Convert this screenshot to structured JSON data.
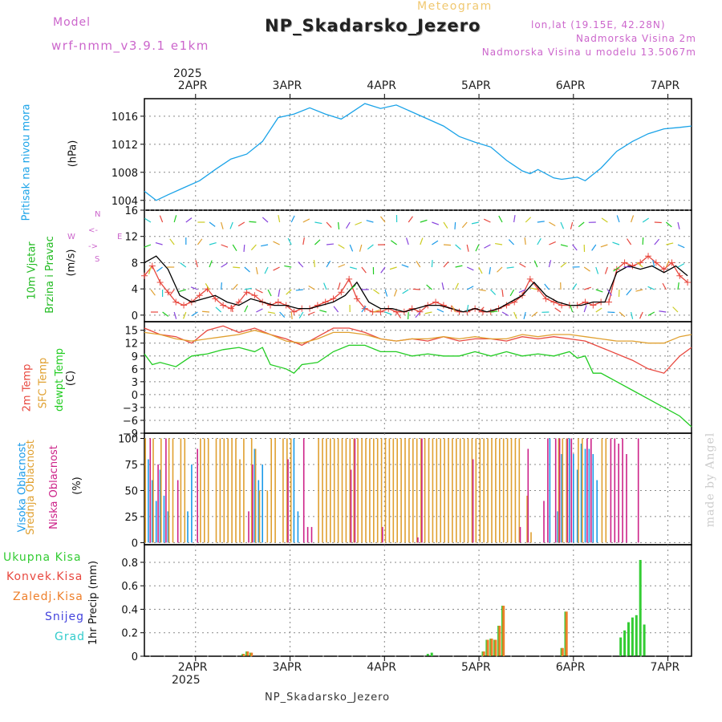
{
  "header": {
    "model_label": "Model",
    "model_name": "wrf-nmm_v3.9.1 e1km",
    "title": "NP_Skadarsko_Jezero",
    "subtitle": "Meteogram",
    "coords": "lon,lat (19.15E, 42.28N)",
    "elev1": "Nadmorska Visina 2m",
    "elev2": "Nadmorska Visina u modelu 13.5067m"
  },
  "footer": {
    "station": "NP_Skadarsko_Jezero",
    "credit": "made by Angel"
  },
  "colors": {
    "pressure": "#1aa3e8",
    "t2m": "#e8483f",
    "sfc": "#e0a030",
    "dew": "#22cc22",
    "high_cloud": "#1a9ae8",
    "mid_cloud": "#e0a030",
    "low_cloud": "#cc2288",
    "total_precip": "#33cc33",
    "conv_precip": "#e8483f",
    "strat_precip": "#ee7f2a",
    "snow": "#4444dd",
    "graupel": "#33cccc",
    "wind_label": "#22bb22",
    "compass": "#cc66cc"
  },
  "chart_data": [
    {
      "id": "pressure",
      "type": "line",
      "ylabel_main": "Pritisak na nivou mora",
      "ylabel_unit": "(hPa)",
      "yticks": [
        1004,
        1008,
        1012,
        1016
      ],
      "ylim": [
        1002.6,
        1018.5
      ],
      "xlim": [
        0,
        139
      ],
      "top_axis": {
        "year": "2025",
        "days": [
          "2APR",
          "3APR",
          "4APR",
          "5APR",
          "6APR",
          "7APR"
        ],
        "day_x": [
          13,
          37,
          61,
          85,
          109,
          133
        ]
      },
      "series": [
        {
          "x": [
            0,
            3,
            6,
            10,
            14,
            18,
            22,
            26,
            30,
            34,
            38,
            42,
            46,
            50,
            52,
            56,
            60,
            64,
            68,
            72,
            76,
            80,
            84,
            88,
            92,
            96,
            98,
            100,
            104,
            106,
            110,
            112,
            116,
            120,
            124,
            128,
            132,
            136,
            139
          ],
          "y": [
            1005.3,
            1004,
            1004.8,
            1005.8,
            1006.8,
            1008.4,
            1009.9,
            1010.6,
            1012.4,
            1015.8,
            1016.3,
            1017.2,
            1016.3,
            1015.6,
            1016.3,
            1017.8,
            1017.1,
            1017.6,
            1016.6,
            1015.6,
            1014.6,
            1013.1,
            1012.3,
            1011.6,
            1009.7,
            1008.2,
            1007.8,
            1008.4,
            1007.2,
            1007,
            1007.3,
            1006.8,
            1008.6,
            1011,
            1012.4,
            1013.5,
            1014.2,
            1014.4,
            1014.6
          ]
        }
      ]
    },
    {
      "id": "wind",
      "type": "line",
      "ylabel_main": "10m Vjetar",
      "ylabel_sub": "Brzina i Pravac",
      "ylabel_unit": "(m/s)",
      "compass": [
        "N",
        "<-",
        "->",
        "E",
        "W",
        "S"
      ],
      "yticks": [
        0,
        4,
        8,
        12,
        16
      ],
      "ylim": [
        -1,
        16
      ],
      "xlim": [
        0,
        139
      ],
      "series": [
        {
          "name": "",
          "color": "#e8483f",
          "marker": "+",
          "x": [
            0,
            2,
            4,
            6,
            8,
            10,
            12,
            14,
            16,
            18,
            20,
            22,
            24,
            26,
            28,
            30,
            32,
            34,
            36,
            38,
            40,
            42,
            44,
            46,
            48,
            50,
            52,
            54,
            56,
            58,
            60,
            62,
            64,
            66,
            68,
            70,
            72,
            74,
            76,
            78,
            80,
            82,
            84,
            86,
            88,
            90,
            92,
            94,
            96,
            98,
            100,
            102,
            104,
            106,
            108,
            110,
            112,
            114,
            116,
            118,
            120,
            122,
            124,
            126,
            128,
            130,
            132,
            134,
            136,
            138
          ],
          "y": [
            6,
            7.5,
            5,
            3.5,
            2,
            1.5,
            2,
            3,
            4,
            2.5,
            1.5,
            1,
            2,
            3.5,
            3,
            2,
            1.5,
            2,
            1.5,
            0.5,
            1,
            1,
            1.5,
            2,
            2.5,
            3.5,
            5.5,
            2.5,
            1,
            0.5,
            0.5,
            1,
            0.5,
            0.5,
            1,
            0.5,
            1.5,
            2,
            1.5,
            1,
            0.5,
            0.5,
            1,
            0.5,
            0.5,
            1,
            1.5,
            2,
            3,
            5.5,
            4,
            2.5,
            2,
            1.5,
            1.5,
            1.5,
            2,
            1.5,
            2,
            2,
            7,
            8,
            7.5,
            8,
            9,
            8,
            7,
            8,
            6,
            5
          ]
        },
        {
          "name": "",
          "color": "#000000",
          "marker": "",
          "x": [
            0,
            3,
            6,
            9,
            12,
            15,
            18,
            21,
            24,
            27,
            30,
            33,
            36,
            39,
            42,
            45,
            48,
            51,
            54,
            57,
            60,
            63,
            66,
            69,
            72,
            75,
            78,
            81,
            84,
            87,
            90,
            93,
            96,
            99,
            102,
            105,
            108,
            111,
            114,
            117,
            120,
            123,
            126,
            129,
            132,
            135,
            138
          ],
          "y": [
            8,
            9,
            7,
            3,
            2,
            2.5,
            3,
            2,
            1.5,
            2.5,
            2,
            1.5,
            1.5,
            1,
            1,
            1.5,
            2,
            3,
            5,
            2,
            1,
            1,
            0.5,
            1,
            1.5,
            1.5,
            1,
            0.5,
            1,
            0.5,
            1,
            2,
            3,
            5,
            3,
            2,
            1.5,
            1.5,
            2,
            2,
            6.5,
            7.5,
            7,
            7.5,
            6.5,
            7.5,
            6
          ]
        }
      ]
    },
    {
      "id": "temperature",
      "type": "line",
      "ylabels": [
        "2m Temp",
        "SFC Temp",
        "dewpt Temp"
      ],
      "ylabel_unit": "(C)",
      "yticks": [
        -9,
        -6,
        -3,
        0,
        3,
        6,
        9,
        12,
        15
      ],
      "ylim": [
        -9,
        17
      ],
      "xlim": [
        0,
        139
      ],
      "series": [
        {
          "name": "2m Temp",
          "color": "#e8483f",
          "x": [
            0,
            4,
            8,
            12,
            16,
            20,
            24,
            28,
            32,
            36,
            40,
            44,
            48,
            52,
            56,
            60,
            64,
            68,
            72,
            76,
            80,
            84,
            88,
            92,
            96,
            100,
            104,
            108,
            112,
            116,
            120,
            124,
            128,
            132,
            136,
            139
          ],
          "y": [
            15.5,
            14,
            13.5,
            12,
            15,
            16,
            14.5,
            15.5,
            14,
            13,
            11.5,
            13.5,
            15.5,
            15.5,
            14.5,
            13,
            12.5,
            13,
            12.5,
            13.5,
            12.5,
            13,
            13,
            12.5,
            13.5,
            13,
            13.5,
            13,
            12.5,
            11,
            9.5,
            8,
            6,
            5,
            9,
            11
          ]
        },
        {
          "name": "SFC Temp",
          "color": "#e0a030",
          "x": [
            0,
            4,
            8,
            12,
            16,
            20,
            24,
            28,
            32,
            36,
            40,
            44,
            48,
            52,
            56,
            60,
            64,
            68,
            72,
            76,
            80,
            84,
            88,
            92,
            96,
            100,
            104,
            108,
            112,
            116,
            120,
            124,
            128,
            132,
            136,
            139
          ],
          "y": [
            14.5,
            14,
            13,
            12.5,
            13,
            13.5,
            14,
            15,
            14,
            12.5,
            12,
            13,
            14.5,
            14.5,
            14,
            13,
            12.5,
            13,
            13,
            13.5,
            13,
            13.5,
            13,
            13,
            14,
            13.5,
            14,
            14,
            13.5,
            13,
            12.5,
            12.5,
            12,
            12,
            13.5,
            14
          ]
        },
        {
          "name": "dewpt Temp",
          "color": "#22cc22",
          "x": [
            0,
            2,
            4,
            8,
            12,
            16,
            20,
            24,
            28,
            30,
            32,
            36,
            38,
            40,
            44,
            48,
            52,
            56,
            60,
            64,
            68,
            72,
            76,
            80,
            84,
            88,
            92,
            96,
            100,
            104,
            108,
            110,
            112,
            114,
            116,
            118,
            120,
            124,
            128,
            132,
            136,
            139
          ],
          "y": [
            9.5,
            7,
            7.5,
            6.5,
            9,
            9.5,
            10.5,
            11,
            10,
            11,
            7,
            6,
            5,
            7,
            7.5,
            10,
            11.5,
            11.5,
            10,
            10,
            9,
            9.5,
            9,
            9,
            10,
            9,
            10,
            9,
            9.5,
            9,
            10,
            8.5,
            9,
            5,
            5,
            4,
            3,
            1,
            -1,
            -3,
            -5,
            -7.5
          ]
        }
      ]
    },
    {
      "id": "clouds",
      "type": "bar",
      "ylabels": [
        "Visoka Oblacnost",
        "Srednja Oblacnost",
        "Niska Oblacnost"
      ],
      "ylabel_unit": "(%)",
      "yticks": [
        0,
        25,
        50,
        75,
        100
      ],
      "ylim": [
        -2,
        105
      ],
      "xlim": [
        0,
        139
      ],
      "series": [
        {
          "name": "Visoka Oblacnost",
          "color": "#1a9ae8",
          "x": [
            1,
            2,
            3,
            4,
            5,
            6,
            11,
            12,
            28,
            29,
            30,
            38,
            39,
            103,
            105,
            106,
            108,
            109,
            110,
            111,
            112,
            113,
            114,
            115
          ],
          "y": [
            80,
            60,
            40,
            70,
            45,
            30,
            30,
            75,
            90,
            60,
            75,
            100,
            30,
            100,
            30,
            85,
            100,
            85,
            70,
            95,
            90,
            90,
            85,
            60
          ]
        },
        {
          "name": "Srednja Oblacnost",
          "color": "#e0a030",
          "x": [
            0,
            2,
            4,
            6,
            7,
            9,
            10,
            14,
            15,
            16,
            18,
            19,
            20,
            21,
            22,
            23,
            24,
            25,
            27,
            28,
            29,
            31,
            32,
            33,
            35,
            36,
            37,
            44,
            45,
            46,
            47,
            48,
            49,
            50,
            51,
            52,
            53,
            54,
            55,
            56,
            57,
            58,
            59,
            60,
            61,
            62,
            63,
            64,
            65,
            66,
            67,
            68,
            69,
            70,
            71,
            72,
            73,
            74,
            75,
            76,
            77,
            78,
            79,
            80,
            81,
            82,
            83,
            84,
            85,
            86,
            87,
            88,
            89,
            90,
            91,
            92,
            93,
            94,
            95,
            97,
            98,
            105,
            106,
            107,
            110,
            111,
            116,
            117
          ],
          "y": [
            100,
            100,
            100,
            100,
            100,
            100,
            100,
            100,
            100,
            100,
            100,
            100,
            100,
            100,
            100,
            100,
            80,
            100,
            100,
            90,
            50,
            50,
            100,
            100,
            100,
            100,
            100,
            100,
            100,
            100,
            100,
            100,
            100,
            100,
            100,
            100,
            100,
            100,
            100,
            100,
            100,
            100,
            100,
            100,
            100,
            100,
            100,
            100,
            100,
            100,
            100,
            100,
            100,
            100,
            100,
            100,
            100,
            100,
            100,
            100,
            100,
            100,
            100,
            100,
            100,
            100,
            100,
            100,
            100,
            100,
            100,
            100,
            100,
            100,
            100,
            100,
            100,
            100,
            100,
            45,
            10,
            100,
            100,
            100,
            100,
            100,
            100,
            100
          ]
        },
        {
          "name": "Niska Oblacnost",
          "color": "#cc2288",
          "x": [
            1,
            3,
            5,
            8,
            13,
            26,
            27,
            36,
            40,
            41,
            42,
            52,
            53,
            60,
            69,
            70,
            83,
            95,
            97,
            101,
            102,
            104,
            105,
            107,
            108,
            112,
            113,
            118,
            119,
            120,
            121,
            122,
            125
          ],
          "y": [
            100,
            75,
            100,
            60,
            90,
            30,
            75,
            80,
            100,
            15,
            15,
            70,
            100,
            15,
            5,
            100,
            80,
            15,
            90,
            40,
            100,
            100,
            100,
            100,
            100,
            100,
            100,
            100,
            100,
            95,
            100,
            85,
            100
          ]
        }
      ]
    },
    {
      "id": "precip",
      "type": "bar",
      "ylabels": [
        "Ukupna Kisa",
        "Konvek.Kisa",
        "Zaledj.Kisa",
        "Snijeg",
        "Grad"
      ],
      "ylabel_unit": "1hr Precip (mm)",
      "yticks": [
        0,
        0.2,
        0.4,
        0.6,
        0.8
      ],
      "ylim": [
        0,
        0.95
      ],
      "xlim": [
        0,
        139
      ],
      "bottom_axis": {
        "days": [
          "2APR",
          "3APR",
          "4APR",
          "5APR",
          "6APR",
          "7APR"
        ],
        "day_x": [
          13,
          37,
          61,
          85,
          109,
          133
        ],
        "year": "2025"
      },
      "series": [
        {
          "name": "Ukupna Kisa",
          "color": "#33cc33",
          "x": [
            25,
            26,
            27,
            72,
            73,
            86,
            87,
            88,
            89,
            90,
            91,
            106,
            107,
            121,
            122,
            123,
            124,
            125,
            126,
            127
          ],
          "y": [
            0.02,
            0.04,
            0.03,
            0.02,
            0.03,
            0.04,
            0.14,
            0.15,
            0.14,
            0.26,
            0.43,
            0.07,
            0.38,
            0.16,
            0.22,
            0.29,
            0.33,
            0.35,
            0.82,
            0.27
          ]
        },
        {
          "name": "Zaledj.Kisa",
          "color": "#ee7f2a",
          "x": [
            25,
            26,
            27,
            86,
            87,
            88,
            89,
            90,
            91,
            106,
            107
          ],
          "y": [
            0.02,
            0.04,
            0.03,
            0.04,
            0.14,
            0.15,
            0.14,
            0.26,
            0.43,
            0.07,
            0.38
          ]
        }
      ]
    }
  ]
}
